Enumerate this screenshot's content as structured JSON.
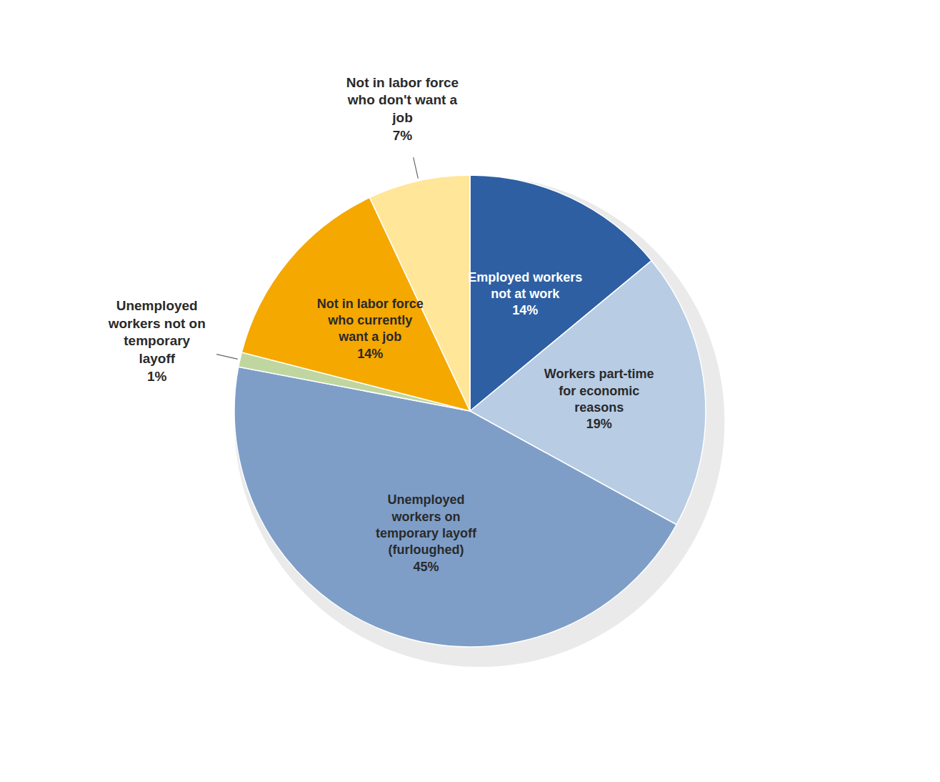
{
  "chart_data": {
    "type": "pie",
    "categories": [
      "Employed workers\nnot at work",
      "Workers part-time\nfor economic\nreasons",
      "Unemployed\nworkers on\ntemporary layoff\n(furloughed)",
      "Unemployed\nworkers not on\ntemporary\nlayoff",
      "Not in labor force\nwho currently\nwant a job",
      "Not in labor force\nwho don't want a\njob"
    ],
    "values": [
      14,
      19,
      45,
      1,
      14,
      7
    ],
    "value_labels": [
      "14%",
      "19%",
      "45%",
      "1%",
      "14%",
      "7%"
    ],
    "data_labels": true,
    "colors": [
      "#2E5FA3",
      "#B8CCE4",
      "#7E9EC8",
      "#BFD6A0",
      "#F5A800",
      "#FFE699"
    ]
  }
}
